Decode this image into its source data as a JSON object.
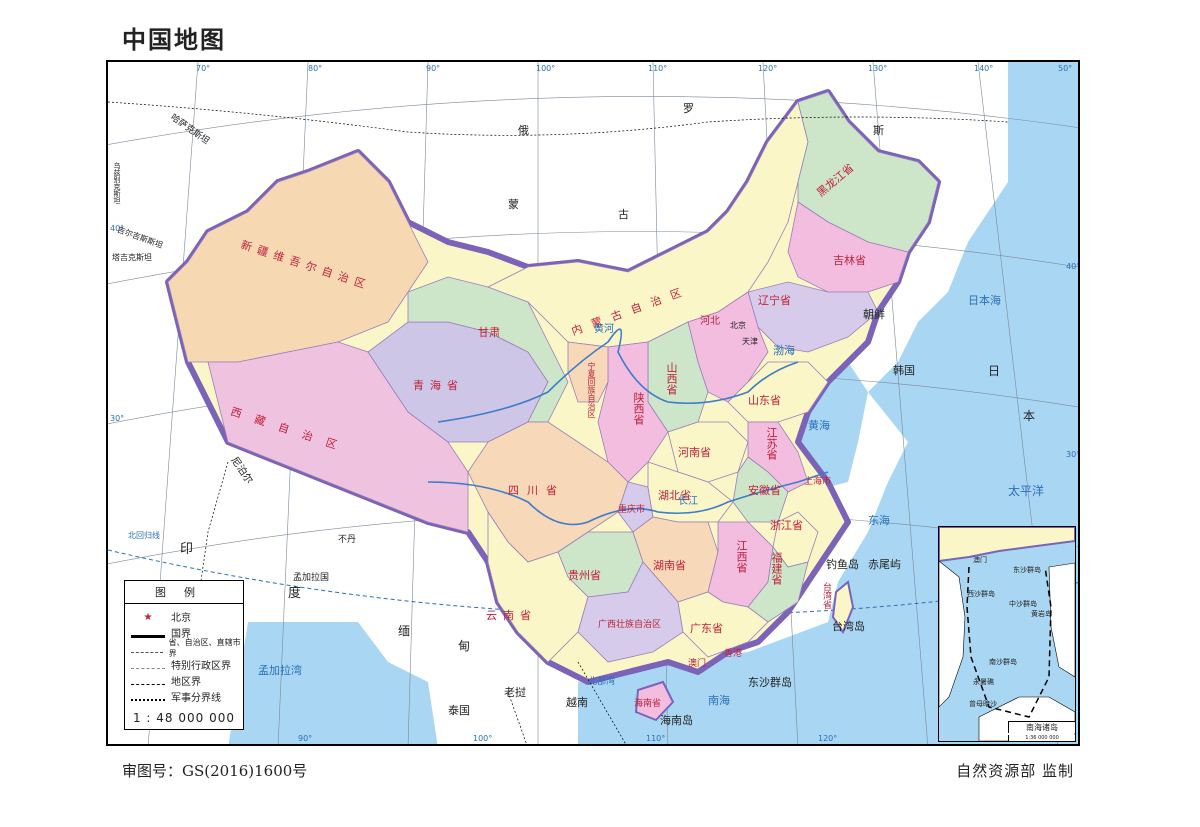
{
  "map": {
    "title": "中国地图",
    "approval_number": "审图号：GS(2016)1600号",
    "publisher": "自然资源部  监制",
    "legend": {
      "title": "图例",
      "capital_label": "北京",
      "items": [
        "国界",
        "省、自治区、直辖市界",
        "特别行政区界",
        "地区界",
        "军事分界线"
      ],
      "scale": "1 : 48 000 000"
    },
    "inset": {
      "title": "南海诸岛",
      "scale": "1:36 000 000",
      "labels": {
        "dongsha": "东沙群岛",
        "xisha": "西沙群岛",
        "zhongsha": "中沙群岛",
        "nansha": "南沙群岛",
        "yongshu": "永暑礁",
        "zengmu": "曾母暗沙",
        "huangyan": "黄岩岛",
        "macao": "澳门"
      }
    },
    "longitude_top": [
      "70°",
      "80°",
      "90°",
      "100°",
      "110°",
      "120°",
      "130°",
      "140°",
      "50°"
    ],
    "longitude_bottom": [
      "90°",
      "100°",
      "110°",
      "120°"
    ],
    "latitude_left": [
      "40°",
      "30°"
    ],
    "latitude_right": [
      "40°",
      "30°"
    ],
    "lines": {
      "tropic": "北回归线"
    },
    "countries": {
      "russia": [
        "俄",
        "罗",
        "斯"
      ],
      "mongolia": [
        "蒙",
        "古"
      ],
      "kazakhstan": "哈萨克斯坦",
      "kyrgyzstan": "吉尔吉斯斯坦",
      "tajikistan": "塔吉克斯坦",
      "uzbekistan": "乌兹别克斯坦",
      "india": [
        "印",
        "度"
      ],
      "nepal": "尼泊尔",
      "bhutan": "不丹",
      "bangladesh": "孟加拉国",
      "myanmar": [
        "缅",
        "甸"
      ],
      "laos": "老挝",
      "vietnam": "越南",
      "thailand": "泰国",
      "north_korea": "朝鲜",
      "south_korea": "韩国",
      "japan": [
        "日",
        "本"
      ]
    },
    "seas": {
      "bohai": "渤海",
      "yellow_sea": "黄海",
      "east_sea": "东海",
      "south_sea": "南海",
      "japan_sea": "日本海",
      "bengal": "孟加拉湾",
      "beibu": "北部湾",
      "pacific": "太平洋"
    },
    "provinces": {
      "xinjiang": "新疆维吾尔自治区",
      "tibet": "西藏自治区",
      "qinghai": "青海省",
      "gansu": "甘肃",
      "neimenggu": "内蒙古自治区",
      "heilongjiang": "黑龙江省",
      "jilin": "吉林省",
      "liaoning": "辽宁省",
      "hebei": "河北",
      "beijing": "北京",
      "tianjin": "天津",
      "shanxi": "山西省",
      "shandong": "山东省",
      "ningxia": "宁夏回族自治区",
      "shaanxi": "陕西省",
      "henan": "河南省",
      "jiangsu": "江苏省",
      "anhui": "安徽省",
      "shanghai": "上海市",
      "sichuan": "四川省",
      "chongqing": "重庆市",
      "hubei": "湖北省",
      "zhejiang": "浙江省",
      "guizhou": "贵州省",
      "hunan": "湖南省",
      "jiangxi": "江西省",
      "fujian": "福建省",
      "yunnan": "云南省",
      "guangxi": "广西壮族自治区",
      "guangdong": "广东省",
      "taiwan": "台湾省",
      "hainan": "海南省",
      "hongkong": "香港",
      "macau": "澳门"
    },
    "islands": {
      "diaoyu": "钓鱼岛",
      "chiwei": "赤尾屿",
      "taiwan_island": "台湾岛",
      "dongsha": "东沙群岛",
      "hainan_island": "海南岛"
    },
    "rivers": {
      "yellow": "黄河",
      "yangtze": "长江"
    },
    "colors": {
      "sea": "#a9d6f3",
      "foreign_land": "#ffffff",
      "border": "#7b63b8",
      "xinjiang": "#f6d8b3",
      "tibet": "#efc3e0",
      "qinghai": "#cdc6e6",
      "yellow_prov": "#fbf6c7",
      "green_prov": "#cde5c8",
      "pink_prov": "#f3bde0",
      "orange_prov": "#f7d8b8",
      "purple_prov": "#d6cbea"
    }
  }
}
